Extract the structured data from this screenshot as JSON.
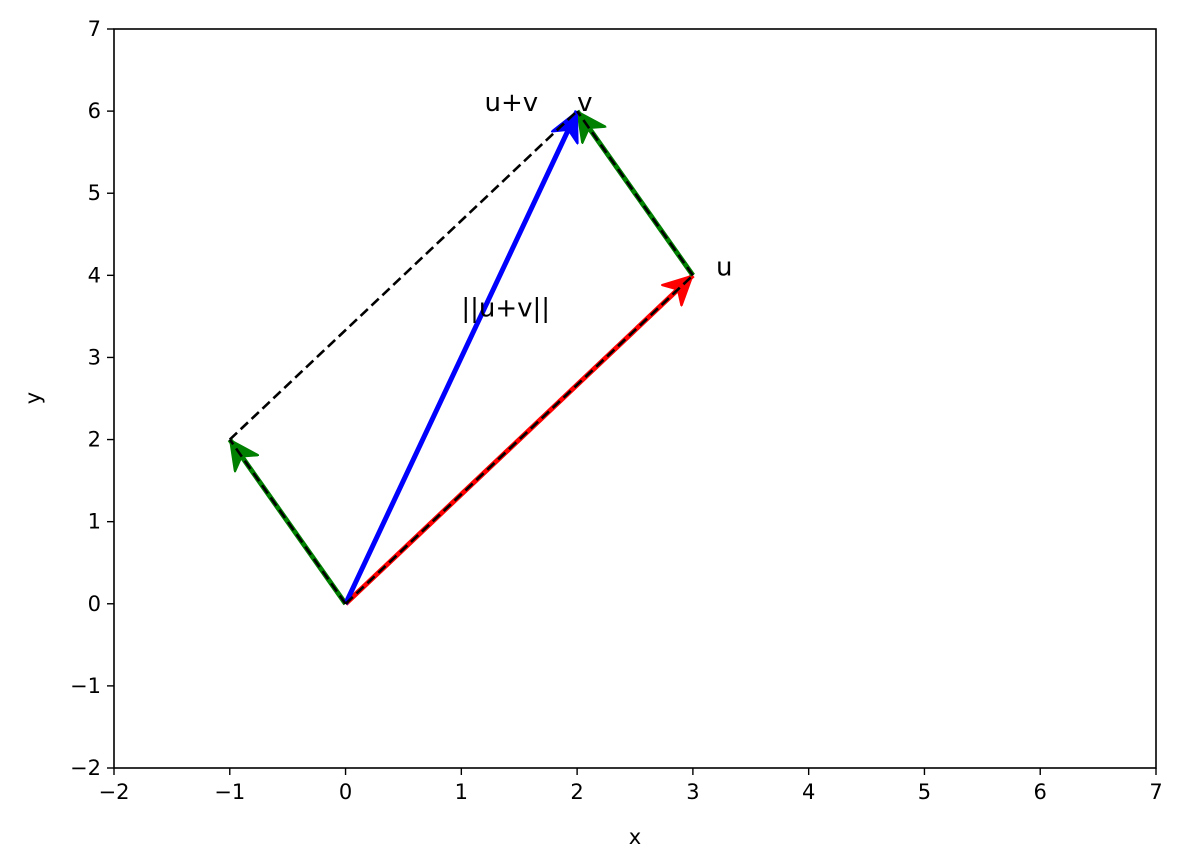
{
  "chart_data": {
    "type": "vector-plot",
    "xlabel": "x",
    "ylabel": "y",
    "xlim": [
      -2,
      7
    ],
    "ylim": [
      -2,
      7
    ],
    "xticks": [
      -2,
      -1,
      0,
      1,
      2,
      3,
      4,
      5,
      6,
      7
    ],
    "yticks": [
      -2,
      -1,
      0,
      1,
      2,
      3,
      4,
      5,
      6,
      7
    ],
    "xtick_labels": [
      "−2",
      "−1",
      "0",
      "1",
      "2",
      "3",
      "4",
      "5",
      "6",
      "7"
    ],
    "ytick_labels": [
      "−2",
      "−1",
      "0",
      "1",
      "2",
      "3",
      "4",
      "5",
      "6",
      "7"
    ],
    "grid": false,
    "vectors": [
      {
        "name": "u",
        "from": [
          0,
          0
        ],
        "to": [
          3,
          4
        ],
        "color": "#ff0000"
      },
      {
        "name": "v",
        "from": [
          0,
          0
        ],
        "to": [
          -1,
          2
        ],
        "color": "#008000"
      },
      {
        "name": "v",
        "from": [
          3,
          4
        ],
        "to": [
          2,
          6
        ],
        "color": "#008000"
      },
      {
        "name": "u+v",
        "from": [
          0,
          0
        ],
        "to": [
          2,
          6
        ],
        "color": "#0000ff"
      }
    ],
    "dashed_lines": [
      {
        "from": [
          -1,
          2
        ],
        "to": [
          2,
          6
        ]
      },
      {
        "from": [
          0,
          0
        ],
        "to": [
          3,
          4
        ]
      },
      {
        "from": [
          0,
          0
        ],
        "to": [
          -1,
          2
        ]
      },
      {
        "from": [
          3,
          4
        ],
        "to": [
          2,
          6
        ]
      }
    ],
    "annotations": [
      {
        "text": "u",
        "x": 3.2,
        "y": 4.0
      },
      {
        "text": "v",
        "x": 2.0,
        "y": 6.0
      },
      {
        "text": "u+v",
        "x": 1.2,
        "y": 6.0
      },
      {
        "text": "||u+v||",
        "x": 1.0,
        "y": 3.5
      }
    ]
  }
}
